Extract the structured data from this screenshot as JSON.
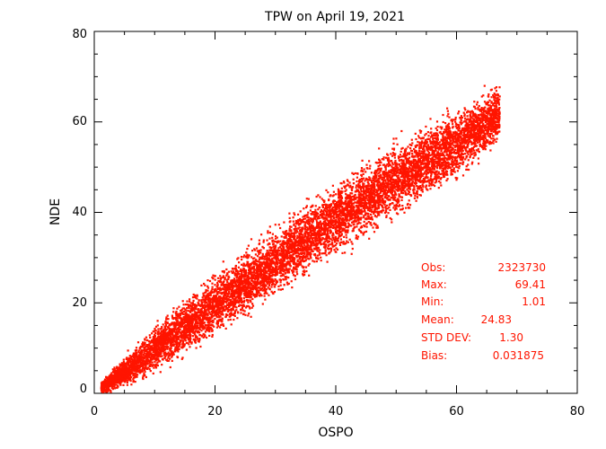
{
  "chart_data": {
    "type": "scatter",
    "title": "TPW on April 19, 2021",
    "xlabel": "OSPO",
    "ylabel": "NDE",
    "xlim": [
      0,
      80
    ],
    "ylim": [
      0,
      80
    ],
    "x_ticks": [
      "0",
      "20",
      "40",
      "60",
      "80"
    ],
    "y_ticks": [
      "0",
      "20",
      "40",
      "60",
      "80"
    ],
    "grid": false,
    "point_color": "#ff1500",
    "density_band": {
      "x": [
        1,
        5,
        10,
        20,
        30,
        40,
        50,
        60,
        67
      ],
      "y_center": [
        1.5,
        5,
        10,
        20,
        29.5,
        39,
        47.5,
        55.5,
        62
      ],
      "y_spread": [
        1,
        2.5,
        4,
        5,
        5.5,
        6,
        6,
        6,
        5
      ]
    },
    "stats": [
      {
        "label": "Obs:",
        "value": "2323730"
      },
      {
        "label": "Max:",
        "value": "69.41"
      },
      {
        "label": "Min:",
        "value": "1.01"
      },
      {
        "label": "Mean:",
        "value": "24.83"
      },
      {
        "label": "STD DEV:",
        "value": "1.30"
      },
      {
        "label": "Bias:",
        "value": "0.031875"
      }
    ]
  }
}
